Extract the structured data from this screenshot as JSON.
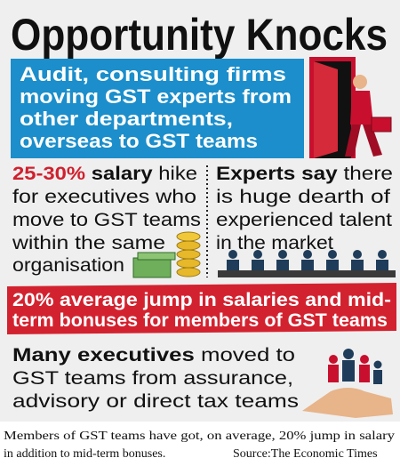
{
  "title": "Opportunity Knocks",
  "headline": [
    "Audit, consulting firms",
    "moving GST experts from",
    "other departments,",
    "overseas to GST teams"
  ],
  "left_point": {
    "highlight": "25-30%",
    "keyword": "salary",
    "first_rest": "hike",
    "lines": [
      "for executives who",
      "move to GST teams",
      "within the same",
      "organisation"
    ]
  },
  "right_point": {
    "keyword": "Experts say",
    "first_rest": "there",
    "lines": [
      "is huge dearth of",
      "experienced talent",
      "in the market"
    ]
  },
  "banner": [
    "20% average jump in salaries and mid-",
    "term bonuses for members of GST teams"
  ],
  "bottom_point": {
    "keyword": "Many executives",
    "first_rest": "moved to",
    "lines": [
      "GST teams from assurance,",
      "advisory or direct tax teams"
    ]
  },
  "caption": {
    "lines": [
      "Members of GST teams have got, on average, 20% jump in salary",
      "in addition to mid-term bonuses."
    ],
    "source": "Source:The Economic Times"
  }
}
